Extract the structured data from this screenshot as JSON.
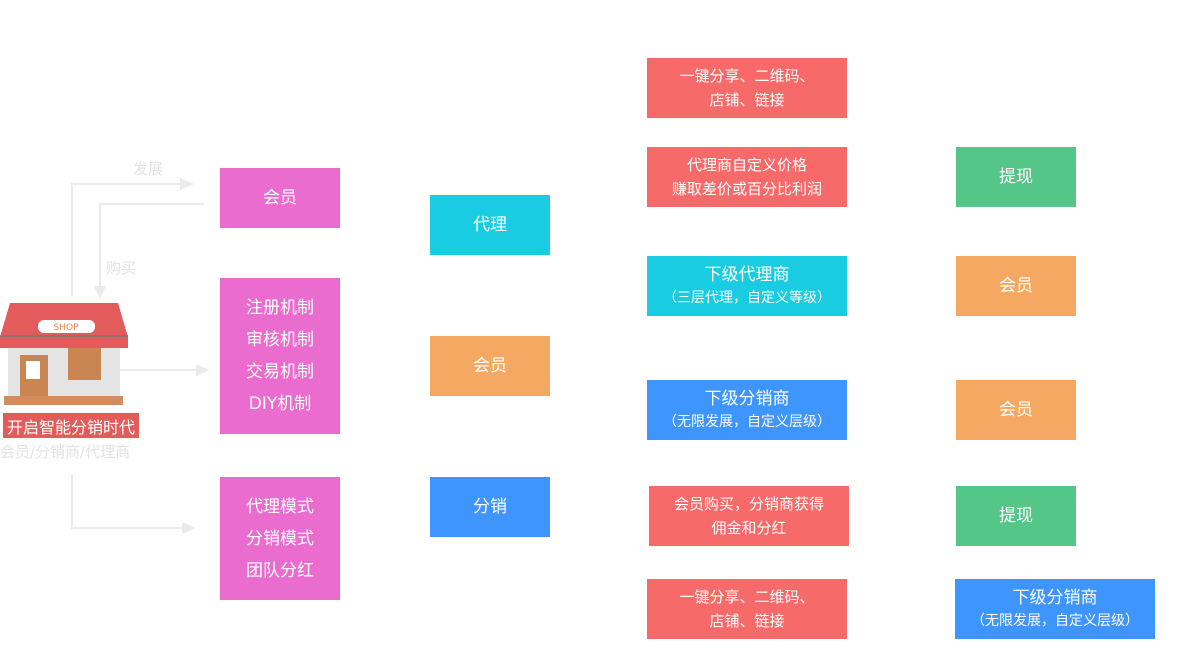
{
  "shop": {
    "sign": "SHOP",
    "caption": "开启智能分销时代",
    "subcaption": "会员/分销商/代理商"
  },
  "arrows": {
    "develop": "发展",
    "buy": "购买"
  },
  "col1": [
    {
      "lines": [
        "会员"
      ]
    },
    {
      "lines": [
        "注册机制",
        "审核机制",
        "交易机制",
        "DIY机制"
      ]
    },
    {
      "lines": [
        "代理模式",
        "分销模式",
        "团队分红"
      ]
    }
  ],
  "col2": [
    {
      "label": "代理"
    },
    {
      "label": "会员"
    },
    {
      "label": "分销"
    }
  ],
  "col3": [
    {
      "lines": [
        "一键分享、二维码、",
        "店铺、链接"
      ]
    },
    {
      "lines": [
        "代理商自定义价格",
        "赚取差价或百分比利润"
      ]
    },
    {
      "title": "下级代理商",
      "sub": "（三层代理，自定义等级）"
    },
    {
      "title": "下级分销商",
      "sub": "（无限发展，自定义层级）"
    },
    {
      "lines": [
        "会员购买，分销商获得",
        "佣金和分红"
      ]
    },
    {
      "lines": [
        "一键分享、二维码、",
        "店铺、链接"
      ]
    }
  ],
  "col4": [
    {
      "label": "提现"
    },
    {
      "label": "会员"
    },
    {
      "label": "会员"
    },
    {
      "label": "提现"
    },
    {
      "title": "下级分销商",
      "sub": "（无限发展，自定义层级）"
    }
  ],
  "colors": {
    "pink": "#ea6ccf",
    "cyan": "#19cce2",
    "orange": "#f5a862",
    "blue": "#3e95fd",
    "red": "#f76a6a",
    "green": "#53c688"
  }
}
